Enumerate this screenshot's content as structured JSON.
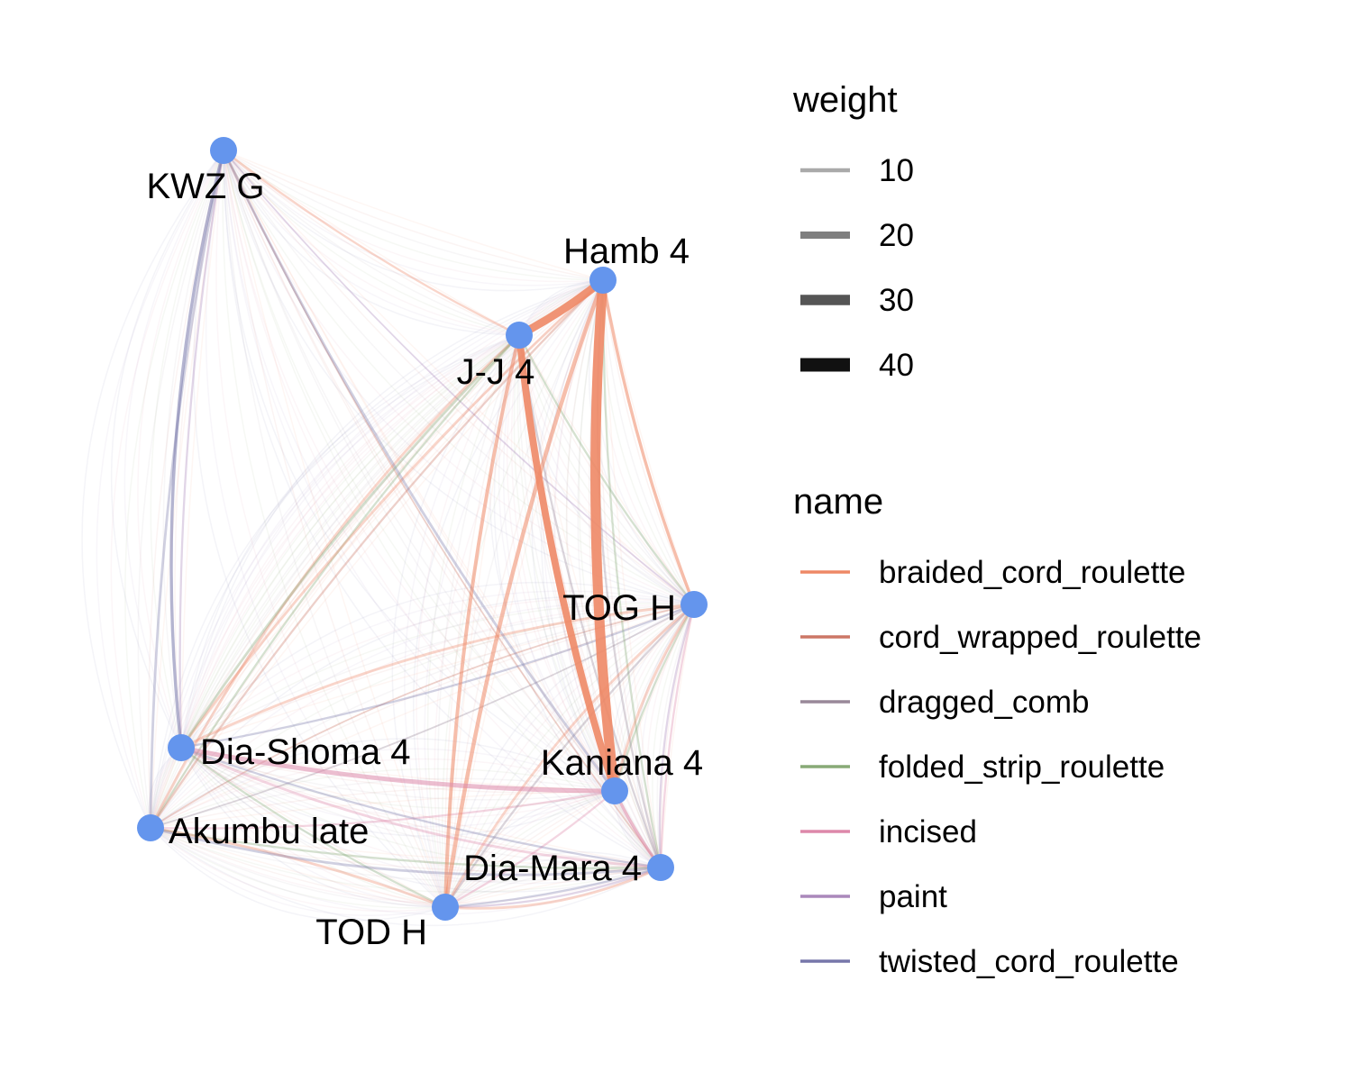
{
  "colors": {
    "node": "#6495ED",
    "braided_cord_roulette": "#EE8866",
    "cord_wrapped_roulette": "#CC7766",
    "dragged_comb": "#998899",
    "folded_strip_roulette": "#88AA77",
    "incised": "#DD88AA",
    "paint": "#AA88BB",
    "twisted_cord_roulette": "#7777AA"
  },
  "nodes": [
    {
      "id": "kwz",
      "label": "KWZ G"
    },
    {
      "id": "hamb",
      "label": "Hamb 4"
    },
    {
      "id": "jj",
      "label": "J-J 4"
    },
    {
      "id": "tog",
      "label": "TOG H"
    },
    {
      "id": "diashoma",
      "label": "Dia-Shoma 4"
    },
    {
      "id": "kaniana",
      "label": "Kaniana 4"
    },
    {
      "id": "akumbu",
      "label": "Akumbu late"
    },
    {
      "id": "diamara",
      "label": "Dia-Mara 4"
    },
    {
      "id": "todh",
      "label": "TOD H"
    }
  ],
  "edges": [
    {
      "from": "jj",
      "to": "hamb",
      "type": "braided_cord_roulette",
      "weight": 14
    },
    {
      "from": "hamb",
      "to": "kaniana",
      "type": "braided_cord_roulette",
      "weight": 18
    },
    {
      "from": "jj",
      "to": "kaniana",
      "type": "braided_cord_roulette",
      "weight": 12
    },
    {
      "from": "hamb",
      "to": "todh",
      "type": "braided_cord_roulette",
      "weight": 6
    },
    {
      "from": "jj",
      "to": "todh",
      "type": "braided_cord_roulette",
      "weight": 5
    },
    {
      "from": "hamb",
      "to": "tog",
      "type": "braided_cord_roulette",
      "weight": 4
    },
    {
      "from": "tog",
      "to": "kaniana",
      "type": "braided_cord_roulette",
      "weight": 3
    },
    {
      "from": "tog",
      "to": "diashoma",
      "type": "braided_cord_roulette",
      "weight": 3
    },
    {
      "from": "tog",
      "to": "todh",
      "type": "braided_cord_roulette",
      "weight": 3
    },
    {
      "from": "hamb",
      "to": "diashoma",
      "type": "braided_cord_roulette",
      "weight": 3
    },
    {
      "from": "jj",
      "to": "akumbu",
      "type": "braided_cord_roulette",
      "weight": 3
    },
    {
      "from": "todh",
      "to": "akumbu",
      "type": "braided_cord_roulette",
      "weight": 3
    },
    {
      "from": "todh",
      "to": "diamara",
      "type": "braided_cord_roulette",
      "weight": 3
    },
    {
      "from": "kwz",
      "to": "jj",
      "type": "braided_cord_roulette",
      "weight": 2
    },
    {
      "from": "diashoma",
      "to": "kaniana",
      "type": "incised",
      "weight": 7
    },
    {
      "from": "kaniana",
      "to": "diamara",
      "type": "incised",
      "weight": 4
    },
    {
      "from": "akumbu",
      "to": "kaniana",
      "type": "incised",
      "weight": 2
    },
    {
      "from": "todh",
      "to": "kaniana",
      "type": "incised",
      "weight": 2
    },
    {
      "from": "tog",
      "to": "diamara",
      "type": "incised",
      "weight": 2
    },
    {
      "from": "diashoma",
      "to": "diamara",
      "type": "incised",
      "weight": 3
    },
    {
      "from": "kwz",
      "to": "diashoma",
      "type": "twisted_cord_roulette",
      "weight": 4
    },
    {
      "from": "kwz",
      "to": "akumbu",
      "type": "twisted_cord_roulette",
      "weight": 3
    },
    {
      "from": "kwz",
      "to": "kaniana",
      "type": "twisted_cord_roulette",
      "weight": 3
    },
    {
      "from": "akumbu",
      "to": "diamara",
      "type": "twisted_cord_roulette",
      "weight": 3
    },
    {
      "from": "diashoma",
      "to": "diamara",
      "type": "twisted_cord_roulette",
      "weight": 2
    },
    {
      "from": "todh",
      "to": "diamara",
      "type": "twisted_cord_roulette",
      "weight": 2
    },
    {
      "from": "diashoma",
      "to": "tog",
      "type": "twisted_cord_roulette",
      "weight": 2
    },
    {
      "from": "jj",
      "to": "diashoma",
      "type": "folded_strip_roulette",
      "weight": 3
    },
    {
      "from": "jj",
      "to": "akumbu",
      "type": "folded_strip_roulette",
      "weight": 2
    },
    {
      "from": "jj",
      "to": "tog",
      "type": "folded_strip_roulette",
      "weight": 2
    },
    {
      "from": "diashoma",
      "to": "todh",
      "type": "folded_strip_roulette",
      "weight": 2
    },
    {
      "from": "akumbu",
      "to": "diamara",
      "type": "folded_strip_roulette",
      "weight": 2
    },
    {
      "from": "tog",
      "to": "kaniana",
      "type": "folded_strip_roulette",
      "weight": 2
    },
    {
      "from": "hamb",
      "to": "diamara",
      "type": "folded_strip_roulette",
      "weight": 2
    },
    {
      "from": "kwz",
      "to": "diashoma",
      "type": "paint",
      "weight": 2
    },
    {
      "from": "kwz",
      "to": "tog",
      "type": "paint",
      "weight": 1
    },
    {
      "from": "tog",
      "to": "diamara",
      "type": "paint",
      "weight": 2
    },
    {
      "from": "todh",
      "to": "diamara",
      "type": "paint",
      "weight": 2
    },
    {
      "from": "hamb",
      "to": "diamara",
      "type": "dragged_comb",
      "weight": 2
    },
    {
      "from": "jj",
      "to": "diamara",
      "type": "dragged_comb",
      "weight": 2
    },
    {
      "from": "tog",
      "to": "todh",
      "type": "dragged_comb",
      "weight": 2
    },
    {
      "from": "akumbu",
      "to": "tog",
      "type": "dragged_comb",
      "weight": 1
    },
    {
      "from": "hamb",
      "to": "akumbu",
      "type": "cord_wrapped_roulette",
      "weight": 2
    },
    {
      "from": "kwz",
      "to": "diamara",
      "type": "cord_wrapped_roulette",
      "weight": 1
    },
    {
      "from": "tog",
      "to": "akumbu",
      "type": "cord_wrapped_roulette",
      "weight": 1
    }
  ],
  "legend": {
    "weight_title": "weight",
    "weight_items": [
      {
        "label": "10",
        "value": 10
      },
      {
        "label": "20",
        "value": 20
      },
      {
        "label": "30",
        "value": 30
      },
      {
        "label": "40",
        "value": 40
      }
    ],
    "name_title": "name",
    "name_items": [
      {
        "label": "braided_cord_roulette",
        "key": "braided_cord_roulette"
      },
      {
        "label": "cord_wrapped_roulette",
        "key": "cord_wrapped_roulette"
      },
      {
        "label": "dragged_comb",
        "key": "dragged_comb"
      },
      {
        "label": "folded_strip_roulette",
        "key": "folded_strip_roulette"
      },
      {
        "label": "incised",
        "key": "incised"
      },
      {
        "label": "paint",
        "key": "paint"
      },
      {
        "label": "twisted_cord_roulette",
        "key": "twisted_cord_roulette"
      }
    ]
  }
}
